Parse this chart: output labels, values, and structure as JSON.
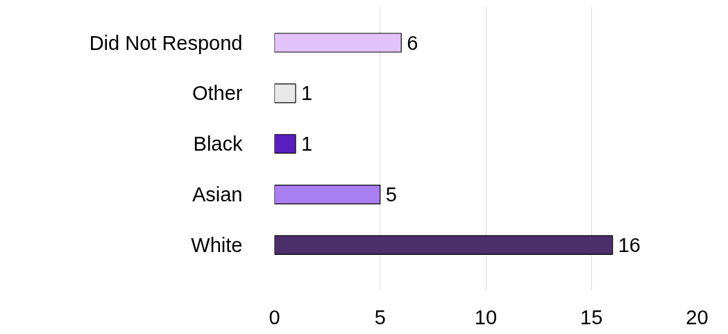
{
  "chart_data": {
    "type": "bar",
    "orientation": "horizontal",
    "categories": [
      "Did Not Respond",
      "Other",
      "Black",
      "Asian",
      "White"
    ],
    "values": [
      6,
      1,
      1,
      5,
      16
    ],
    "colors": [
      "#e2c4fb",
      "#e8e8e8",
      "#5b1fbf",
      "#a97ef0",
      "#4b2f6b"
    ],
    "xlim": [
      0,
      20
    ],
    "xticks": [
      0,
      5,
      10,
      15,
      20
    ],
    "grid": "x",
    "data_labels": true
  }
}
